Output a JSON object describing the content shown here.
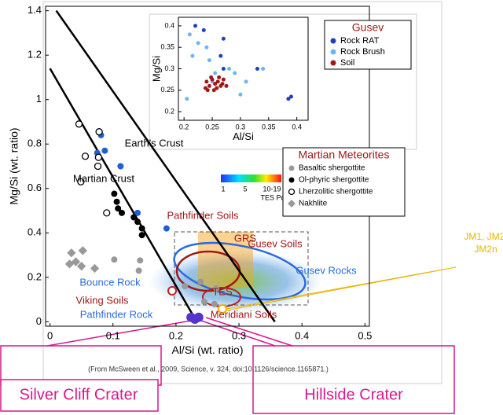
{
  "chart_data": [
    {
      "type": "scatter",
      "xlabel": "Al/Si (wt. ratio)",
      "ylabel": "Mg/Si (wt. ratio)",
      "xlim": [
        -0.007,
        0.507
      ],
      "ylim": [
        -0.02,
        1.42
      ],
      "xticks": [
        0,
        0.1,
        0.2,
        0.3,
        0.4,
        0.5
      ],
      "yticks": [
        0,
        0.2,
        0.4,
        0.6,
        0.8,
        1,
        1.2,
        1.4
      ],
      "lines": [
        {
          "name": "Earth's Crust",
          "color": "#000000",
          "x": [
            0.01,
            0.357
          ],
          "y": [
            1.4,
            0
          ]
        },
        {
          "name": "Martian Crust",
          "color": "#000000",
          "x": [
            0,
            0.233
          ],
          "y": [
            1.14,
            0
          ]
        }
      ],
      "legend_title": "Martian Meteorites",
      "series": [
        {
          "name": "Basaltic shergottite",
          "color": "#999999",
          "marker": "circle",
          "x": [
            0.143,
            0.141,
            0.102,
            0.214,
            0.239,
            0.264,
            0.261,
            0.245
          ],
          "y": [
            0.276,
            0.23,
            0.28,
            0.16,
            0.18,
            0.15,
            0.08,
            0.09
          ]
        },
        {
          "name": "Ol-phyric shergottite",
          "color": "#000000",
          "marker": "circle",
          "x": [
            0.102,
            0.106,
            0.108,
            0.114,
            0.133,
            0.139,
            0.146,
            0.146
          ],
          "y": [
            0.576,
            0.54,
            0.51,
            0.49,
            0.47,
            0.45,
            0.42,
            0.39
          ]
        },
        {
          "name": "Lherzolitic shergottite",
          "color": "#000000",
          "marker": "open-circle",
          "x": [
            0.046,
            0.078,
            0.056,
            0.077,
            0.076,
            0.049,
            0.09
          ],
          "y": [
            0.89,
            0.855,
            0.745,
            0.74,
            0.7,
            0.63,
            0.49
          ]
        },
        {
          "name": "Nakhlite",
          "color": "#999999",
          "marker": "diamond",
          "x": [
            0.034,
            0.041,
            0.031,
            0.05,
            0.071,
            0.052
          ],
          "y": [
            0.31,
            0.27,
            0.26,
            0.25,
            0.24,
            0.32
          ]
        }
      ],
      "rocks": {
        "color": "#1f5fd6",
        "x": [
          0.081,
          0.087,
          0.075,
          0.112,
          0.139,
          0.185
        ],
        "y": [
          0.84,
          0.77,
          0.76,
          0.7,
          0.49,
          0.42
        ]
      },
      "pathfinder_rock": {
        "name": "Pathfinder Rock",
        "color": "#5533cc",
        "x": [
          0.224,
          0.236,
          0.23
        ],
        "y": [
          0.02,
          0.02,
          0.012
        ]
      },
      "colorbar": {
        "label": "TES Point Density",
        "ticks": [
          "1",
          "5",
          "10-19"
        ]
      },
      "annotations": [
        "Earth's Crust",
        "Martian Crust",
        "Pathfinder Soils",
        "GRS",
        "Gusev Soils",
        "Gusev Rocks",
        "Bounce Rock",
        "Viking Soils",
        "TES",
        "Meridiani Soils"
      ],
      "jm_label": [
        "JM1, JM2,",
        "JM2n"
      ],
      "citation": "(From McSween et al., 2009, Science, v. 324, doi:10.1126/science.1165871.)",
      "craters": [
        "Silver Cliff Crater",
        "Hillside Crater"
      ]
    },
    {
      "type": "scatter",
      "xlabel": "Al/Si",
      "ylabel": "Mg/Si",
      "xlim": [
        0.19,
        0.42
      ],
      "ylim": [
        0.18,
        0.42
      ],
      "xticks": [
        0.2,
        0.25,
        0.3,
        0.35,
        0.4
      ],
      "yticks": [
        0.2,
        0.25,
        0.3,
        0.35,
        0.4
      ],
      "legend_title": "Gusev",
      "series": [
        {
          "name": "Rock RAT",
          "color": "#1f3fc0",
          "marker": "circle",
          "x": [
            0.22,
            0.235,
            0.265,
            0.27,
            0.33,
            0.385,
            0.39,
            0.27
          ],
          "y": [
            0.4,
            0.39,
            0.33,
            0.37,
            0.3,
            0.23,
            0.235,
            0.3
          ]
        },
        {
          "name": "Rock Brush",
          "color": "#6fb4f0",
          "marker": "circle",
          "x": [
            0.21,
            0.225,
            0.24,
            0.245,
            0.255,
            0.28,
            0.29,
            0.25,
            0.205,
            0.3,
            0.31,
            0.34,
            0.215
          ],
          "y": [
            0.38,
            0.36,
            0.35,
            0.32,
            0.29,
            0.3,
            0.29,
            0.27,
            0.23,
            0.24,
            0.27,
            0.3,
            0.33
          ]
        },
        {
          "name": "Soil",
          "color": "#a01818",
          "marker": "circle",
          "x": [
            0.24,
            0.245,
            0.25,
            0.255,
            0.26,
            0.265,
            0.27,
            0.242,
            0.248,
            0.258,
            0.262,
            0.268,
            0.253,
            0.275,
            0.238
          ],
          "y": [
            0.27,
            0.26,
            0.275,
            0.265,
            0.27,
            0.26,
            0.275,
            0.25,
            0.28,
            0.255,
            0.28,
            0.265,
            0.25,
            0.26,
            0.255
          ]
        }
      ]
    }
  ]
}
